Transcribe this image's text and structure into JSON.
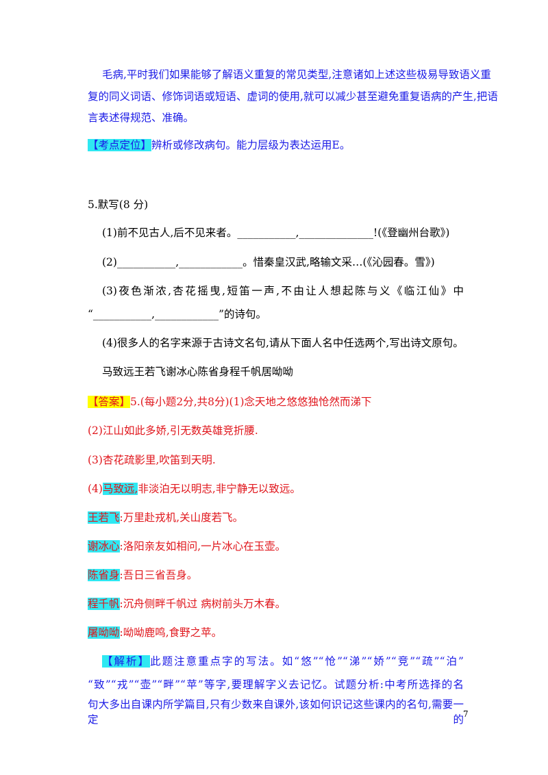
{
  "top_paragraph": {
    "line1": "毛病,平时我们如果能够了解语义重复的常见类型,注意诸如上述这些极易导致语义重",
    "line2": "复的同义词语、修饰词语或短语、虚词的使用,就可以减少甚至避免重复语病的产生,把语",
    "line3": "言表述得规范、准确。"
  },
  "kaodian": {
    "tag": "【考点定位】",
    "text": "辨析或修改病句。能力层级为表达运用E。"
  },
  "question": {
    "title": "5.默写(8 分)",
    "q1": "(1)前不见古人,后不见来者。___________,______________!(《登幽州台歌》)",
    "q2": "(2)___________,____________。惜秦皇汉武,略输文采…(《沁园春。雪》)",
    "q3_line1": "(3)夜色渐浓,杏花摇曳,短笛一声,不由让人想起陈与义《临江仙》中",
    "q3_line2": "“___________,____________”的诗句。",
    "q4": "(4)很多人的名字来源于古诗文名句,请从下面人名中任选两个,写出诗文原句。",
    "names": "马致远王若飞谢冰心陈省身程千帆居呦呦"
  },
  "answer": {
    "tag": "【答案】",
    "a1": "5.(每小题2分,共8分)(1)念天地之悠悠独怆然而涕下",
    "a2": "(2)江山如此多娇,引无数英雄竞折腰.",
    "a3": "(3)杏花疏影里,吹笛到天明.",
    "a4_prefix": "(4)",
    "a4_name": "马致远,",
    "a4_text": "非淡泊无以明志,非宁静无以致远。",
    "names_list": [
      {
        "name": "王若飞",
        "text": ":万里赴戎机,关山度若飞。"
      },
      {
        "name": "谢冰心",
        "text": ":洛阳亲友如相问,一片冰心在玉壶。"
      },
      {
        "name": "陈省身",
        "text": ":吾日三省吾身。"
      },
      {
        "name": "程千帆",
        "text": ":沉舟侧畔千帆过 病树前头万木春。"
      },
      {
        "name": "屠呦呦",
        "text": ":呦呦鹿鸣,食野之苹。"
      }
    ]
  },
  "analysis": {
    "tag": "【解析】",
    "line1": "此题注意重点字的写法。如“悠”“怆”“涕”“娇”“竞”“疏”“泊”",
    "line2": "“致”“戎”“壶”“畔”“苹”等字,要理解字义去记忆。试题分析:中考所选择的名",
    "line3": "句大多出自课内所学篇目,只有少数来自课外,该如何识记这些课内的名句,需要一定的"
  },
  "page_number": "7"
}
